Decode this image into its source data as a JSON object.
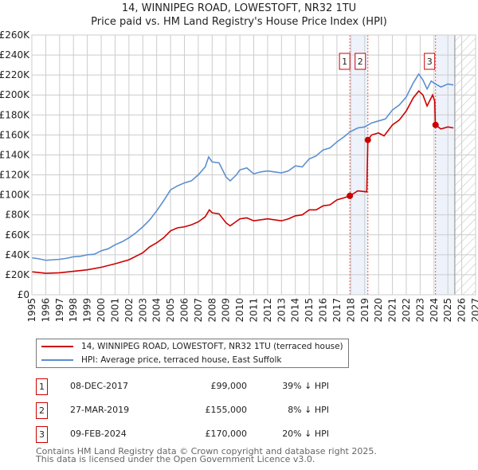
{
  "chart_data": {
    "type": "line",
    "title": "14, WINNIPEG ROAD, LOWESTOFT, NR32 1TU",
    "subtitle": "Price paid vs. HM Land Registry's House Price Index (HPI)",
    "xlim": [
      1995,
      2027
    ],
    "ylim": [
      0,
      260000
    ],
    "x_ticks": [
      "1995",
      "1996",
      "1997",
      "1998",
      "1999",
      "2000",
      "2001",
      "2002",
      "2003",
      "2004",
      "2005",
      "2006",
      "2007",
      "2008",
      "2009",
      "2010",
      "2011",
      "2012",
      "2013",
      "2014",
      "2015",
      "2016",
      "2017",
      "2018",
      "2019",
      "2020",
      "2021",
      "2022",
      "2023",
      "2024",
      "2025",
      "2026",
      "2027"
    ],
    "y_ticks": [
      "£0",
      "£20K",
      "£40K",
      "£60K",
      "£80K",
      "£100K",
      "£120K",
      "£140K",
      "£160K",
      "£180K",
      "£200K",
      "£220K",
      "£240K",
      "£260K"
    ],
    "grid": true,
    "series": [
      {
        "name": "14, WINNIPEG ROAD, LOWESTOFT, NR32 1TU (terraced house)",
        "color": "#cc0000",
        "x": [
          1995,
          1996,
          1997,
          1998,
          1999,
          2000,
          2001,
          2002,
          2003,
          2003.5,
          2004,
          2004.5,
          2005,
          2005.5,
          2006,
          2006.5,
          2007,
          2007.5,
          2007.8,
          2008,
          2008.5,
          2009,
          2009.3,
          2010,
          2010.5,
          2011,
          2012,
          2013,
          2013.5,
          2014,
          2014.5,
          2015,
          2015.5,
          2016,
          2016.5,
          2017,
          2017.5,
          2017.93,
          2018.5,
          2019.15,
          2019.23,
          2019.5,
          2020,
          2020.4,
          2021,
          2021.5,
          2022,
          2022.5,
          2022.9,
          2023.2,
          2023.5,
          2023.9,
          2024.05,
          2024.1,
          2024.5,
          2025,
          2025.4
        ],
        "y": [
          23,
          21.5,
          22,
          23.5,
          25,
          27.5,
          31,
          35,
          42,
          48,
          52,
          57,
          64,
          67,
          68,
          70,
          73,
          78,
          85,
          82,
          81,
          72,
          69,
          76,
          77,
          74,
          76,
          74,
          76,
          79,
          80,
          85,
          85,
          89,
          90,
          95,
          97,
          99,
          104,
          103,
          155,
          160,
          162,
          159,
          170,
          175,
          184,
          197,
          204,
          200,
          189,
          200,
          194,
          170,
          166,
          168,
          167
        ]
      },
      {
        "name": "HPI: Average price, terraced house, East Suffolk",
        "color": "#5b8fd0",
        "x": [
          1995,
          1995.5,
          1996,
          1996.5,
          1997,
          1997.5,
          1998,
          1998.5,
          1999,
          1999.5,
          2000,
          2000.5,
          2001,
          2001.5,
          2002,
          2002.5,
          2003,
          2003.5,
          2004,
          2004.5,
          2005,
          2005.5,
          2006,
          2006.5,
          2007,
          2007.5,
          2007.75,
          2008,
          2008.5,
          2009,
          2009.3,
          2009.75,
          2010,
          2010.5,
          2011,
          2011.5,
          2012,
          2012.5,
          2013,
          2013.5,
          2014,
          2014.5,
          2015,
          2015.5,
          2016,
          2016.5,
          2017,
          2017.5,
          2017.93,
          2018.5,
          2019,
          2019.5,
          2020,
          2020.5,
          2021,
          2021.5,
          2022,
          2022.5,
          2022.9,
          2023.2,
          2023.5,
          2023.8,
          2024.1,
          2024.5,
          2025,
          2025.4
        ],
        "y": [
          37,
          36,
          34.5,
          35,
          35.5,
          36.5,
          38,
          38.5,
          40,
          40.5,
          44,
          46,
          50,
          53,
          57,
          62,
          68,
          75,
          84,
          94,
          105,
          109,
          112,
          114,
          120,
          128,
          138,
          133,
          132,
          118,
          114,
          120,
          125,
          127,
          121,
          123,
          124,
          123,
          122,
          124,
          129,
          128,
          136,
          139,
          145,
          147,
          153,
          158,
          163,
          167,
          168,
          172,
          174,
          176,
          185,
          190,
          198,
          212,
          221,
          215,
          206,
          214,
          211,
          208,
          211,
          210
        ]
      }
    ],
    "y_unit": "thousands GBP",
    "sales": [
      {
        "label": "1",
        "x": 2017.93,
        "y": 99
      },
      {
        "label": "2",
        "x": 2019.23,
        "y": 155
      },
      {
        "label": "3",
        "x": 2024.11,
        "y": 170
      }
    ],
    "shaded_ranges": [
      [
        2017.93,
        2019.23
      ],
      [
        2024.11,
        2025.5
      ]
    ],
    "forecast_hatch_from": 2025.5,
    "legend_position": "below"
  },
  "table": [
    {
      "num": "1",
      "date": "08-DEC-2017",
      "price": "£99,000",
      "diff": "39% ↓ HPI"
    },
    {
      "num": "2",
      "date": "27-MAR-2019",
      "price": "£155,000",
      "diff": "8% ↓ HPI"
    },
    {
      "num": "3",
      "date": "09-FEB-2024",
      "price": "£170,000",
      "diff": "20% ↓ HPI"
    }
  ],
  "footer": [
    "Contains HM Land Registry data © Crown copyright and database right 2025.",
    "This data is licensed under the Open Government Licence v3.0."
  ]
}
